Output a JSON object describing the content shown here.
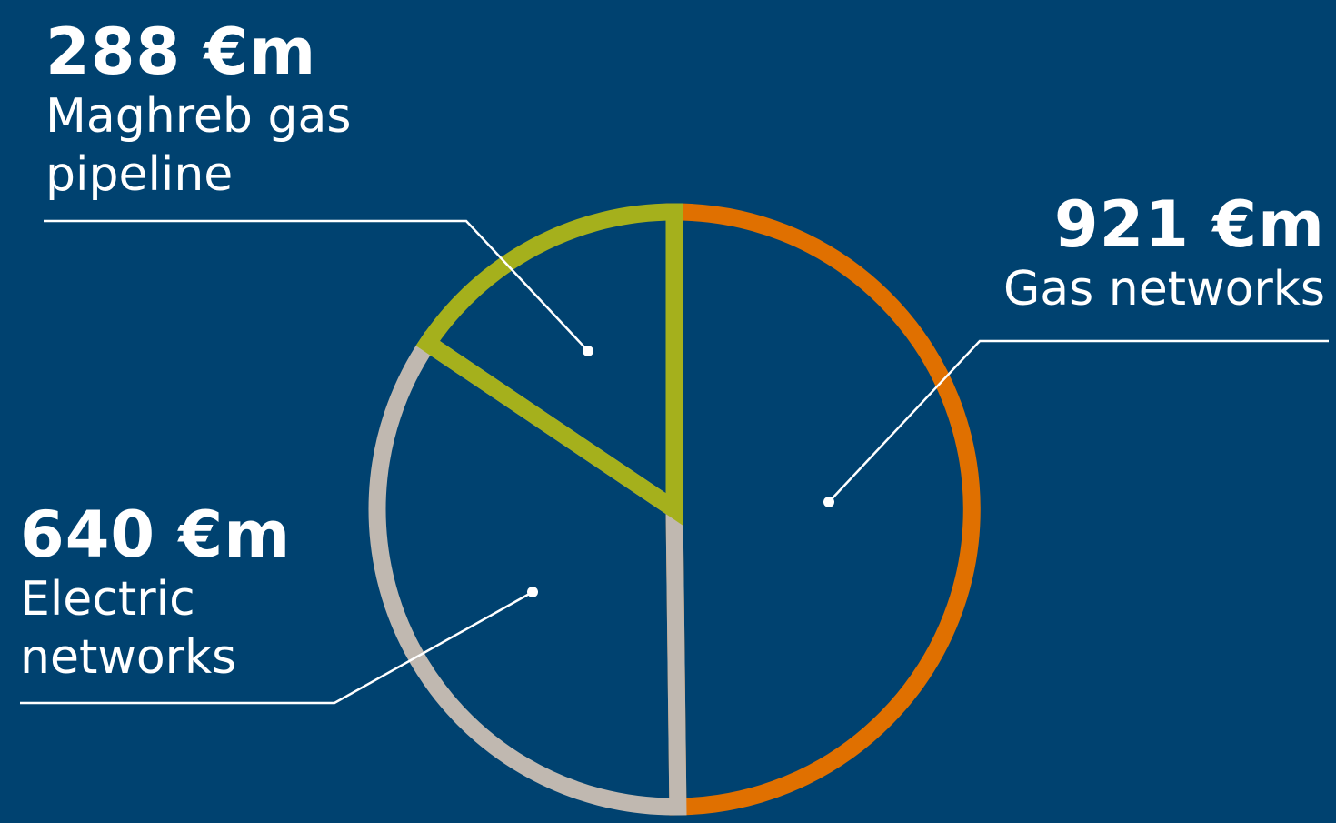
{
  "colors": {
    "background": "#004270",
    "gas_networks": "#e07000",
    "maghreb_pipeline": "#a5b01c",
    "electric_networks": "#c0b8b0",
    "leader_lines": "#ffffff"
  },
  "chart_data": {
    "type": "pie",
    "unit": "€m",
    "start": "12 o'clock, clockwise",
    "style": "outlined slices, no fill",
    "slices": [
      {
        "key": "gas_networks",
        "name": "Gas networks",
        "value": 921,
        "label_value": "921 €m",
        "color": "#e07000"
      },
      {
        "key": "electric_networks",
        "name": "Electric networks",
        "value": 640,
        "label_value": "640 €m",
        "color": "#c0b8b0"
      },
      {
        "key": "maghreb_pipeline",
        "name": "Maghreb gas pipeline",
        "value": 288,
        "label_value": "288 €m",
        "color": "#a5b01c"
      }
    ]
  },
  "labels": {
    "maghreb": {
      "value": "288 €m",
      "name": "Maghreb gas pipeline"
    },
    "gas": {
      "value": "921 €m",
      "name": "Gas networks"
    },
    "electric": {
      "value": "640 €m",
      "name": "Electric networks"
    }
  }
}
